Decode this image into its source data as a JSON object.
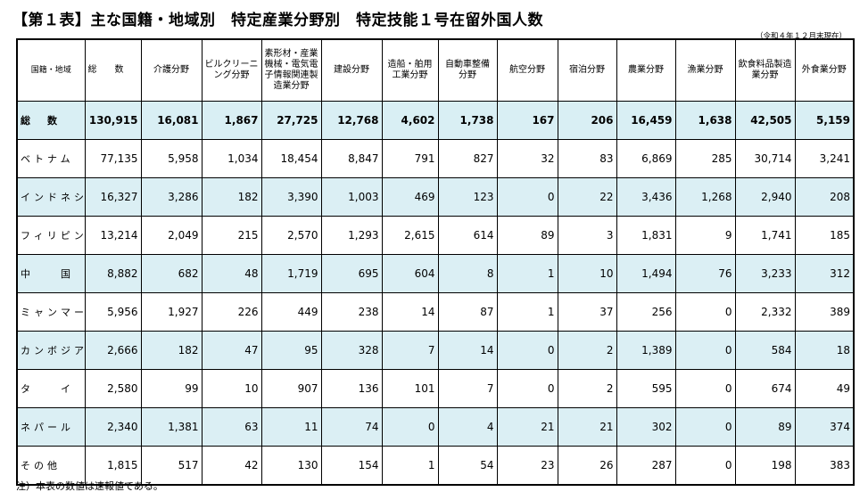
{
  "title": "【第１表】主な国籍・地域別　特定産業分野別　特定技能１号在留外国人数",
  "as_of": "（令和４年１２月末現在）",
  "headers": [
    "国籍・地域",
    "総　　数",
    "介護分野",
    "ビルクリーニング分野",
    "素形材・産業機械・電気電子情報関連製造業分野",
    "建設分野",
    "造船・舶用工業分野",
    "自動車整備分野",
    "航空分野",
    "宿泊分野",
    "農業分野",
    "漁業分野",
    "飲食料品製造業分野",
    "外食業分野"
  ],
  "rows": [
    {
      "country": "総　数",
      "values": [
        "130,915",
        "16,081",
        "1,867",
        "27,725",
        "12,768",
        "4,602",
        "1,738",
        "167",
        "206",
        "16,459",
        "1,638",
        "42,505",
        "5,159"
      ]
    },
    {
      "country": "ベトナム",
      "values": [
        "77,135",
        "5,958",
        "1,034",
        "18,454",
        "8,847",
        "791",
        "827",
        "32",
        "83",
        "6,869",
        "285",
        "30,714",
        "3,241"
      ]
    },
    {
      "country": "インドネシア",
      "values": [
        "16,327",
        "3,286",
        "182",
        "3,390",
        "1,003",
        "469",
        "123",
        "0",
        "22",
        "3,436",
        "1,268",
        "2,940",
        "208"
      ]
    },
    {
      "country": "フィリピン",
      "values": [
        "13,214",
        "2,049",
        "215",
        "2,570",
        "1,293",
        "2,615",
        "614",
        "89",
        "3",
        "1,831",
        "9",
        "1,741",
        "185"
      ]
    },
    {
      "country": "中　　国",
      "values": [
        "8,882",
        "682",
        "48",
        "1,719",
        "695",
        "604",
        "8",
        "1",
        "10",
        "1,494",
        "76",
        "3,233",
        "312"
      ]
    },
    {
      "country": "ミャンマー",
      "values": [
        "5,956",
        "1,927",
        "226",
        "449",
        "238",
        "14",
        "87",
        "1",
        "37",
        "256",
        "0",
        "2,332",
        "389"
      ]
    },
    {
      "country": "カンボジア",
      "values": [
        "2,666",
        "182",
        "47",
        "95",
        "328",
        "7",
        "14",
        "0",
        "2",
        "1,389",
        "0",
        "584",
        "18"
      ]
    },
    {
      "country": "タ　　イ",
      "values": [
        "2,580",
        "99",
        "10",
        "907",
        "136",
        "101",
        "7",
        "0",
        "2",
        "595",
        "0",
        "674",
        "49"
      ]
    },
    {
      "country": "ネパール",
      "values": [
        "2,340",
        "1,381",
        "63",
        "11",
        "74",
        "0",
        "4",
        "21",
        "21",
        "302",
        "0",
        "89",
        "374"
      ]
    },
    {
      "country": "その他",
      "values": [
        "1,815",
        "517",
        "42",
        "130",
        "154",
        "1",
        "54",
        "23",
        "26",
        "287",
        "0",
        "198",
        "383"
      ]
    }
  ],
  "note": "注）本表の数値は速報値である。"
}
